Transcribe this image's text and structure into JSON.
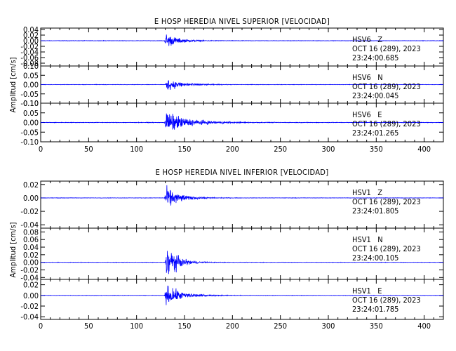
{
  "chart_data": [
    {
      "type": "line",
      "title": "E HOSP HEREDIA NIVEL SUPERIOR [VELOCIDAD]",
      "ylabel": "Amplitud [cm/s]",
      "xlim": [
        0,
        420
      ],
      "x_ticks": [
        "0",
        "50",
        "100",
        "150",
        "200",
        "250",
        "300",
        "350",
        "400"
      ],
      "line_color": "#0000ff",
      "grid": false,
      "series": [
        {
          "name": "HSV6   Z",
          "date": "OCT 16 (289), 2023",
          "time": "23:24:00.685",
          "ylim": [
            -0.09,
            0.045
          ],
          "y_ticks": [
            "0.04",
            "0.02",
            "0.00",
            "-0.02",
            "-0.04",
            "-0.06",
            "-0.08"
          ],
          "envelope": {
            "onset": 129,
            "peak": 0.042,
            "noise": 0.001,
            "decay": 12
          }
        },
        {
          "name": "HSV6   N",
          "date": "OCT 16 (289), 2023",
          "time": "23:24:00.045",
          "ylim": [
            -0.1,
            0.1
          ],
          "y_ticks": [
            "0.10",
            "0.05",
            "0.00",
            "-0.05",
            "-0.10"
          ],
          "envelope": {
            "onset": 130,
            "peak": 0.05,
            "noise": 0.0015,
            "decay": 16
          }
        },
        {
          "name": "HSV6   E",
          "date": "OCT 16 (289), 2023",
          "time": "23:24:01.265",
          "ylim": [
            -0.1,
            0.1
          ],
          "y_ticks": [
            "0.10",
            "0.05",
            "0.00",
            "-0.05",
            "-0.10"
          ],
          "envelope": {
            "onset": 129,
            "peak": 0.085,
            "noise": 0.002,
            "decay": 22
          }
        }
      ]
    },
    {
      "type": "line",
      "title": "E HOSP HEREDIA NIVEL INFERIOR [VELOCIDAD]",
      "ylabel": "Amplitud [cm/s]",
      "xlim": [
        0,
        420
      ],
      "x_ticks": [
        "0",
        "50",
        "100",
        "150",
        "200",
        "250",
        "300",
        "350",
        "400"
      ],
      "line_color": "#0000ff",
      "grid": false,
      "series": [
        {
          "name": "HSV1   Z",
          "date": "OCT 16 (289), 2023",
          "time": "23:24:01.805",
          "ylim": [
            -0.045,
            0.025
          ],
          "y_ticks": [
            "0.02",
            "0.00",
            "-0.02",
            "-0.04"
          ],
          "envelope": {
            "onset": 129,
            "peak": 0.025,
            "noise": 0.0004,
            "decay": 14
          }
        },
        {
          "name": "HSV1   N",
          "date": "OCT 16 (289), 2023",
          "time": "23:24:00.105",
          "ylim": [
            -0.045,
            0.09
          ],
          "y_ticks": [
            "0.08",
            "0.06",
            "0.04",
            "0.02",
            "0.00",
            "-0.02",
            "-0.04"
          ],
          "envelope": {
            "onset": 130,
            "peak": 0.085,
            "noise": 0.0008,
            "decay": 10
          }
        },
        {
          "name": "HSV1   E",
          "date": "OCT 16 (289), 2023",
          "time": "23:24:01.785",
          "ylim": [
            -0.045,
            0.03
          ],
          "y_ticks": [
            "0.02",
            "0.00",
            "-0.02",
            "-0.04"
          ],
          "envelope": {
            "onset": 129,
            "peak": 0.03,
            "noise": 0.0005,
            "decay": 16
          }
        }
      ]
    }
  ]
}
